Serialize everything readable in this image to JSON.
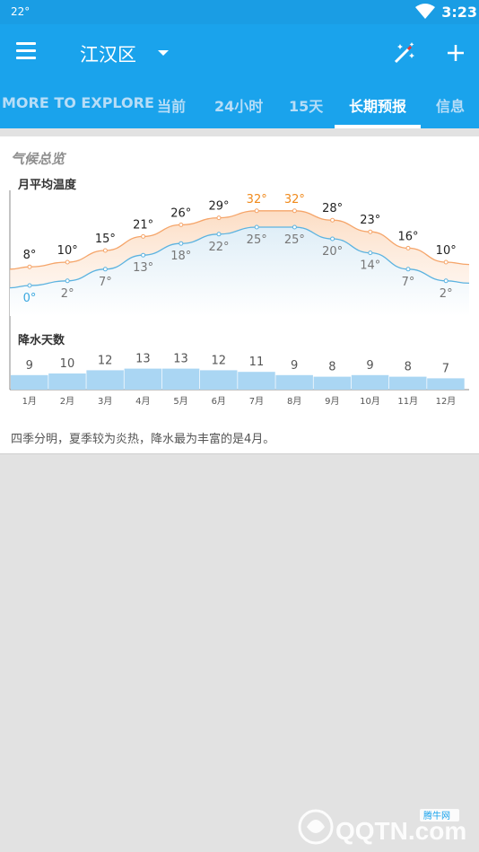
{
  "status_bar": {
    "temp": "22°",
    "time": "3:23"
  },
  "app_bar": {
    "location": "江汉区"
  },
  "tabs": [
    {
      "label": "MORE TO EXPLORE",
      "active": false
    },
    {
      "label": "当前",
      "active": false
    },
    {
      "label": "24小时",
      "active": false
    },
    {
      "label": "15天",
      "active": false
    },
    {
      "label": "长期预报",
      "active": true
    },
    {
      "label": "信息",
      "active": false
    }
  ],
  "climate": {
    "title": "气候总览",
    "temp_label": "月平均温度",
    "precip_label": "降水天数",
    "summary": "四季分明，夏季较为炎热，降水最为丰富的是4月。"
  },
  "chart_data": {
    "type": "line",
    "months": [
      "1月",
      "2月",
      "3月",
      "4月",
      "5月",
      "6月",
      "7月",
      "8月",
      "9月",
      "10月",
      "11月",
      "12月"
    ],
    "series": [
      {
        "values": [
          8,
          10,
          15,
          21,
          26,
          29,
          32,
          32,
          28,
          23,
          16,
          10
        ]
      },
      {
        "values": [
          0,
          2,
          7,
          13,
          18,
          22,
          25,
          25,
          20,
          14,
          7,
          2
        ]
      }
    ],
    "value_suffix": "°",
    "precip_days": [
      9,
      10,
      12,
      13,
      13,
      12,
      11,
      9,
      8,
      9,
      8,
      7
    ],
    "colors": {
      "high": "#f5a56a",
      "low": "#5cb3e0",
      "hot_label": "#f08a1c",
      "cold_label": "#3aa8e0",
      "bar": "#aad6f3"
    }
  },
  "watermark": {
    "text": "QQTN.com",
    "badge": "腾牛网"
  }
}
